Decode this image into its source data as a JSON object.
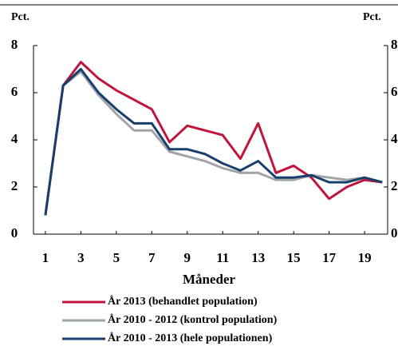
{
  "chart_data": {
    "type": "line",
    "y_label": "Pct.",
    "y2_label": "Pct.",
    "x_label": "Måneder",
    "x": [
      1,
      2,
      3,
      4,
      5,
      6,
      7,
      8,
      9,
      10,
      11,
      12,
      13,
      14,
      15,
      16,
      17,
      18,
      19,
      20
    ],
    "xlim": [
      0.33,
      20.3
    ],
    "xticks": [
      1,
      3,
      5,
      7,
      9,
      11,
      13,
      15,
      17,
      19
    ],
    "ylim": [
      0,
      8
    ],
    "yticks": [
      0,
      2,
      4,
      6,
      8
    ],
    "y2lim": [
      0,
      8
    ],
    "y2ticks": [
      0,
      2,
      4,
      6,
      8
    ],
    "series": [
      {
        "name": "År 2013 (behandlet population)",
        "color": "#c0143c",
        "values": [
          0.8,
          6.3,
          7.3,
          6.6,
          6.1,
          5.7,
          5.3,
          3.9,
          4.6,
          4.4,
          4.2,
          3.2,
          4.7,
          2.6,
          2.9,
          2.4,
          1.5,
          2.0,
          2.3,
          2.2
        ]
      },
      {
        "name": "År 2010 - 2012 (kontrol population)",
        "color": "#a0a4a8",
        "values": [
          0.8,
          6.3,
          6.9,
          5.9,
          5.1,
          4.4,
          4.4,
          3.5,
          3.3,
          3.1,
          2.8,
          2.6,
          2.6,
          2.3,
          2.3,
          2.5,
          2.4,
          2.3,
          2.4,
          2.2
        ]
      },
      {
        "name": "År 2010 - 2013 (hele populationen)",
        "color": "#173f6b",
        "values": [
          0.8,
          6.3,
          7.0,
          6.0,
          5.3,
          4.7,
          4.7,
          3.6,
          3.6,
          3.4,
          3.0,
          2.7,
          3.1,
          2.4,
          2.4,
          2.5,
          2.2,
          2.2,
          2.4,
          2.2
        ]
      }
    ]
  }
}
